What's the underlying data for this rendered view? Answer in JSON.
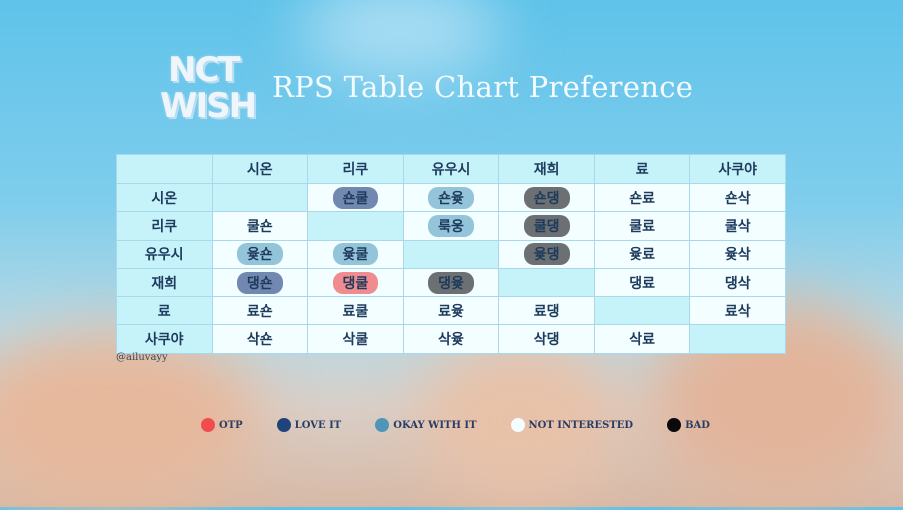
{
  "logo": {
    "text_line1": "NCT",
    "text_line2": "WISH"
  },
  "title": "RPS Table Chart Preference",
  "credit": "@ailuvayy",
  "colors": {
    "otp": "#f24c4f",
    "love": "#1f437a",
    "okay": "#4f95b8",
    "not": "#f4fdff",
    "bad": "#0a0a0a"
  },
  "table": {
    "columns": [
      "시온",
      "리쿠",
      "유우시",
      "재희",
      "료",
      "사쿠야"
    ],
    "rows": [
      {
        "label": "시온",
        "cells": [
          {
            "t": "",
            "k": "e"
          },
          {
            "t": "숀쿨",
            "k": "love"
          },
          {
            "t": "숀윷",
            "k": "okay"
          },
          {
            "t": "숀댕",
            "k": "bad"
          },
          {
            "t": "숀료",
            "k": "c"
          },
          {
            "t": "숀삭",
            "k": "c"
          }
        ]
      },
      {
        "label": "리쿠",
        "cells": [
          {
            "t": "쿨숀",
            "k": "c"
          },
          {
            "t": "",
            "k": "e"
          },
          {
            "t": "룩웅",
            "k": "okay"
          },
          {
            "t": "쿨댕",
            "k": "bad"
          },
          {
            "t": "쿨료",
            "k": "c"
          },
          {
            "t": "쿨삭",
            "k": "c"
          }
        ]
      },
      {
        "label": "유우시",
        "cells": [
          {
            "t": "윷숀",
            "k": "okay"
          },
          {
            "t": "윷쿨",
            "k": "okay"
          },
          {
            "t": "",
            "k": "e"
          },
          {
            "t": "윷댕",
            "k": "bad"
          },
          {
            "t": "윷료",
            "k": "c"
          },
          {
            "t": "윷삭",
            "k": "c"
          }
        ]
      },
      {
        "label": "재희",
        "cells": [
          {
            "t": "댕숀",
            "k": "love"
          },
          {
            "t": "댕쿨",
            "k": "otp"
          },
          {
            "t": "댕윷",
            "k": "bad"
          },
          {
            "t": "",
            "k": "e"
          },
          {
            "t": "댕료",
            "k": "c"
          },
          {
            "t": "댕삭",
            "k": "c"
          }
        ]
      },
      {
        "label": "료",
        "cells": [
          {
            "t": "료숀",
            "k": "c"
          },
          {
            "t": "료쿨",
            "k": "c"
          },
          {
            "t": "료윷",
            "k": "c"
          },
          {
            "t": "료댕",
            "k": "c"
          },
          {
            "t": "",
            "k": "e"
          },
          {
            "t": "료삭",
            "k": "c"
          }
        ]
      },
      {
        "label": "사쿠야",
        "cells": [
          {
            "t": "삭숀",
            "k": "c"
          },
          {
            "t": "삭쿨",
            "k": "c"
          },
          {
            "t": "삭윷",
            "k": "c"
          },
          {
            "t": "삭댕",
            "k": "c"
          },
          {
            "t": "삭료",
            "k": "c"
          },
          {
            "t": "",
            "k": "e"
          }
        ]
      }
    ]
  },
  "legend": [
    {
      "label": "OTP",
      "color": "#f24c4f"
    },
    {
      "label": "LOVE IT",
      "color": "#1f437a"
    },
    {
      "label": "OKAY WITH IT",
      "color": "#4f95b8"
    },
    {
      "label": "NOT INTERESTED",
      "color": "#f4fdff"
    },
    {
      "label": "BAD",
      "color": "#0a0a0a"
    }
  ]
}
